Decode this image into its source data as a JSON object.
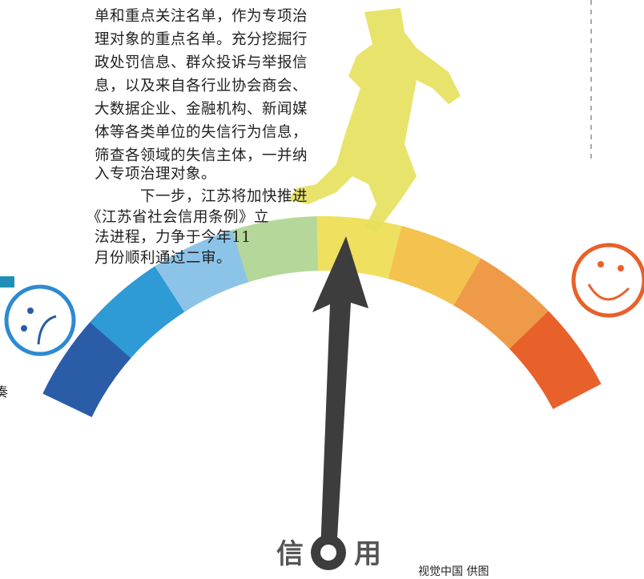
{
  "article": {
    "lines": [
      "单和重点关注名单，作为专项治",
      "理对象的重点名单。充分挖掘行",
      "政处罚信息、群众投诉与举报信",
      "息，以及来自各行业协会商会、",
      "大数据企业、金融机构、新闻媒",
      "体等各类单位的失信行为信息，",
      "筛查各领域的失信主体，一并纳",
      "入专项治理对象。",
      "下一步，江苏将加快推进",
      "《江苏省社会信用条例》立",
      "法进程，力争于今年11",
      "月份顺利通过二审。"
    ],
    "fragment": "奏"
  },
  "illustration": {
    "left_word": "信",
    "right_word": "用",
    "credit": "视觉中国 供图"
  }
}
